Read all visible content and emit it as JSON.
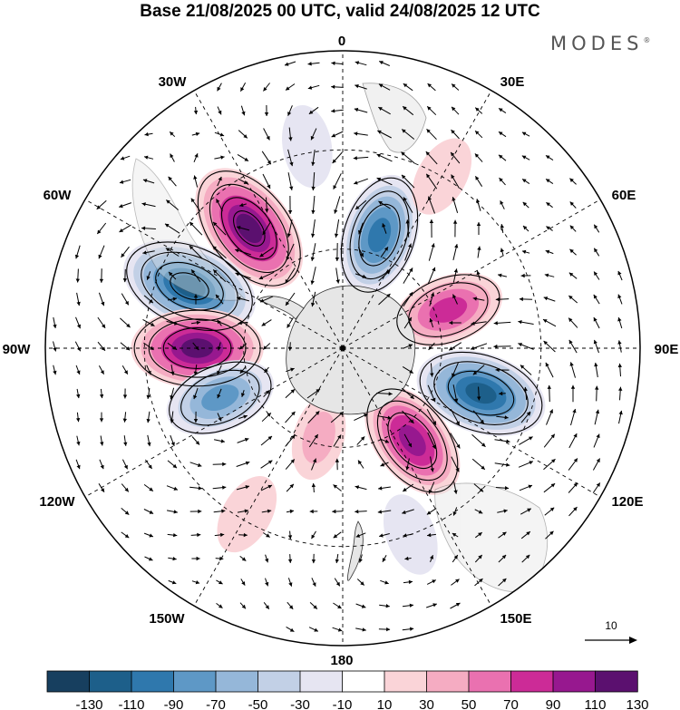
{
  "title": "Base 21/08/2025 00 UTC, valid 24/08/2025 12 UTC",
  "brand": {
    "name": "MODES",
    "mark": "®"
  },
  "chart_data": {
    "type": "heatmap",
    "projection": "south polar stereographic",
    "title": "Base 21/08/2025 00 UTC, valid 24/08/2025 12 UTC",
    "longitude_labels": [
      "0",
      "30E",
      "60E",
      "90E",
      "120E",
      "150E",
      "180",
      "150W",
      "120W",
      "90W",
      "60W",
      "30W"
    ],
    "colorbar": {
      "tick_labels": [
        "-130",
        "-110",
        "-90",
        "-70",
        "-50",
        "-30",
        "-10",
        "10",
        "30",
        "50",
        "70",
        "90",
        "110",
        "130"
      ],
      "levels": [
        -130,
        -110,
        -90,
        -70,
        -50,
        -30,
        -10,
        10,
        30,
        50,
        70,
        90,
        110,
        130
      ],
      "colors": [
        "#173f5f",
        "#1d5f8a",
        "#2f78ad",
        "#5e98c6",
        "#95b7d9",
        "#c2d0e6",
        "#e6e5f2",
        "#ffffff",
        "#fad4d8",
        "#f5acc2",
        "#ea71b0",
        "#cc2b97",
        "#97188f",
        "#5b106f"
      ]
    },
    "vector_reference": {
      "label": "10",
      "value": 10
    },
    "anomaly_centers": [
      {
        "lon": -38,
        "colat_deg": 46,
        "value": 120
      },
      {
        "lon": -68,
        "colat_deg": 50,
        "value": -120
      },
      {
        "lon": -90,
        "colat_deg": 44,
        "value": 110
      },
      {
        "lon": -112,
        "colat_deg": 40,
        "value": -75
      },
      {
        "lon": 18,
        "colat_deg": 36,
        "value": -95
      },
      {
        "lon": 70,
        "colat_deg": 34,
        "value": 75
      },
      {
        "lon": 108,
        "colat_deg": 44,
        "value": -110
      },
      {
        "lon": 143,
        "colat_deg": 35,
        "value": 95
      },
      {
        "lon": -165,
        "colat_deg": 28,
        "value": 30
      },
      {
        "lon": -150,
        "colat_deg": 58,
        "value": 25
      },
      {
        "lon": 30,
        "colat_deg": 60,
        "value": 25
      },
      {
        "lon": -10,
        "colat_deg": 62,
        "value": -25
      },
      {
        "lon": 160,
        "colat_deg": 60,
        "value": -25
      }
    ]
  }
}
